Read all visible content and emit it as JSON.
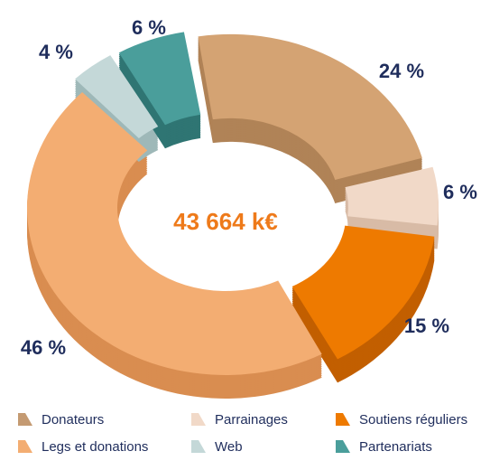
{
  "chart_data": {
    "type": "pie",
    "style": "3d-donut",
    "center_label": "43 664 k€",
    "slices": [
      {
        "name": "Donateurs",
        "label": "24 %",
        "value": 24,
        "color": "#d4a373",
        "side_color": "#b08357"
      },
      {
        "name": "Parrainages",
        "label": "6 %",
        "value": 6,
        "color": "#f1d9c8",
        "side_color": "#d8bba6"
      },
      {
        "name": "Soutiens réguliers",
        "label": "15 %",
        "value": 15,
        "color": "#ee7a00",
        "side_color": "#c25f00"
      },
      {
        "name": "Legs et donations",
        "label": "46 %",
        "value": 46,
        "color": "#f3ad72",
        "side_color": "#d98d50"
      },
      {
        "name": "Web",
        "label": "4 %",
        "value": 4,
        "color": "#c4d8d8",
        "side_color": "#9eb8b8"
      },
      {
        "name": "Partenariats",
        "label": "6 %",
        "value": 6,
        "color": "#4a9e9b",
        "side_color": "#2f7573"
      }
    ],
    "legend": [
      {
        "label": "Donateurs",
        "color": "#c49a72"
      },
      {
        "label": "Parrainages",
        "color": "#f1d9c8"
      },
      {
        "label": "Soutiens réguliers",
        "color": "#ee7a00"
      },
      {
        "label": "Legs et donations",
        "color": "#f3ad72"
      },
      {
        "label": "Web",
        "color": "#c4d8d8"
      },
      {
        "label": "Partenariats",
        "color": "#4a9e9b"
      }
    ]
  }
}
